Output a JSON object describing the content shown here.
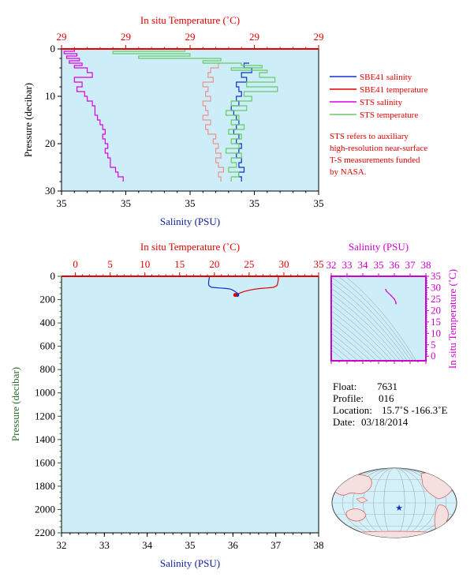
{
  "colors": {
    "plot_bg": "#cdeef8",
    "salinity": "#1030d0",
    "temperature": "#e00000",
    "sts_salinity": "#e000e0",
    "sts_temperature": "#66cc66",
    "pressure_axis": "#2a6a2a",
    "ts_axis": "#cc00cc"
  },
  "chart_data": [
    {
      "type": "line",
      "top_axis_label": "In situ Temperature (˚C)",
      "top_tick_labels": [
        "29",
        "29",
        "29",
        "29",
        "29"
      ],
      "bottom_axis_label": "Salinity (PSU)",
      "bottom_tick_labels": [
        "35",
        "35",
        "35",
        "35",
        "35"
      ],
      "ylabel": "Pressure (decibar)",
      "y_tick_labels": [
        "0",
        "10",
        "20",
        "30"
      ],
      "ylim": [
        0,
        30
      ],
      "legend_position": "right",
      "legend": [
        {
          "name": "SBE41 salinity",
          "color": "#1030d0"
        },
        {
          "name": "SBE41 temperature",
          "color": "#e00000"
        },
        {
          "name": "STS salinity",
          "color": "#e000e0"
        },
        {
          "name": "STS temperature",
          "color": "#66cc66"
        }
      ],
      "note": [
        "STS refers to auxiliary",
        "high-resolution near-surface",
        "T-S measurements funded",
        "by NASA."
      ],
      "series": [
        {
          "name": "SBE41 salinity",
          "pressure": [
            3,
            4,
            5,
            6,
            7,
            8,
            9,
            10,
            11,
            12,
            13,
            14,
            15,
            16,
            17,
            18,
            19,
            20,
            21,
            22,
            23,
            24,
            25,
            26,
            27,
            28
          ],
          "value_fraction": [
            0.73,
            0.71,
            0.74,
            0.7,
            0.72,
            0.68,
            0.69,
            0.7,
            0.68,
            0.69,
            0.66,
            0.67,
            0.68,
            0.69,
            0.68,
            0.67,
            0.69,
            0.68,
            0.7,
            0.69,
            0.68,
            0.7,
            0.69,
            0.71,
            0.69,
            0.7
          ]
        },
        {
          "name": "SBE41 temperature",
          "pressure": [
            3,
            4,
            5,
            6,
            7,
            8,
            9,
            10,
            11,
            12,
            13,
            14,
            15,
            16,
            17,
            18,
            19,
            20,
            21,
            22,
            23,
            24,
            25,
            26,
            27,
            28
          ],
          "value_fraction": [
            0.62,
            0.61,
            0.58,
            0.57,
            0.59,
            0.55,
            0.57,
            0.56,
            0.58,
            0.55,
            0.56,
            0.57,
            0.55,
            0.58,
            0.56,
            0.57,
            0.6,
            0.59,
            0.61,
            0.6,
            0.62,
            0.6,
            0.61,
            0.63,
            0.61,
            0.62
          ]
        },
        {
          "name": "STS salinity",
          "pressure": [
            0,
            0.5,
            1,
            1.5,
            2,
            2.5,
            3,
            3.5,
            4,
            5,
            6,
            7,
            8,
            9,
            10,
            11,
            12,
            13,
            14,
            15,
            16,
            17,
            18,
            19,
            20,
            21,
            22,
            23,
            24,
            25,
            26,
            27,
            28
          ],
          "value_fraction": [
            0.0,
            0.05,
            0.01,
            0.06,
            0.02,
            0.07,
            0.03,
            0.08,
            0.05,
            0.1,
            0.12,
            0.05,
            0.08,
            0.06,
            0.09,
            0.1,
            0.12,
            0.13,
            0.13,
            0.14,
            0.15,
            0.16,
            0.17,
            0.16,
            0.17,
            0.18,
            0.17,
            0.18,
            0.19,
            0.19,
            0.21,
            0.22,
            0.24
          ]
        },
        {
          "name": "STS temperature",
          "pressure": [
            0,
            0.5,
            1,
            1.5,
            2,
            2.5,
            3,
            3.5,
            4,
            4.5,
            5,
            6,
            7,
            8,
            9,
            10,
            11,
            12,
            13,
            14,
            15,
            16,
            17,
            18,
            19,
            20,
            21,
            22,
            23,
            24,
            25,
            26,
            27,
            28
          ],
          "value_fraction": [
            0.25,
            0.48,
            0.2,
            0.5,
            0.3,
            0.62,
            0.55,
            0.7,
            0.78,
            0.66,
            0.8,
            0.77,
            0.83,
            0.72,
            0.84,
            0.71,
            0.74,
            0.66,
            0.72,
            0.64,
            0.69,
            0.66,
            0.71,
            0.65,
            0.7,
            0.66,
            0.69,
            0.64,
            0.7,
            0.66,
            0.68,
            0.65,
            0.69,
            0.66
          ]
        }
      ]
    },
    {
      "type": "line",
      "top_axis_label": "In situ Temperature (˚C)",
      "top_ticks": [
        0,
        5,
        10,
        15,
        20,
        25,
        30,
        35
      ],
      "xlim_temperature": [
        -2,
        35
      ],
      "bottom_axis_label": "Salinity (PSU)",
      "bottom_ticks": [
        32,
        33,
        34,
        35,
        36,
        37,
        38
      ],
      "xlim_salinity": [
        32,
        38
      ],
      "ylabel": "Pressure (decibar)",
      "y_ticks": [
        0,
        200,
        400,
        600,
        800,
        1000,
        1200,
        1400,
        1600,
        1800,
        2000,
        2200
      ],
      "ylim": [
        0,
        2200
      ],
      "series": [
        {
          "name": "Salinity",
          "pressure": [
            0,
            10,
            30,
            60,
            80,
            95,
            100,
            105,
            110,
            120,
            130,
            145,
            150,
            155,
            160
          ],
          "values": [
            35.45,
            35.45,
            35.44,
            35.43,
            35.44,
            35.5,
            35.7,
            35.85,
            35.95,
            36.0,
            36.05,
            36.1,
            36.12,
            36.1,
            36.1
          ]
        },
        {
          "name": "Temperature",
          "pressure": [
            0,
            10,
            30,
            60,
            80,
            95,
            100,
            105,
            110,
            120,
            130,
            145,
            150,
            155,
            160
          ],
          "values": [
            29.2,
            29.2,
            29.2,
            29.1,
            29.0,
            28.5,
            27.5,
            26.5,
            25.8,
            25.0,
            24.3,
            23.6,
            23.4,
            23.2,
            23.0
          ]
        }
      ],
      "end_markers": [
        {
          "series": "Salinity",
          "pressure": 160,
          "value": 36.1
        },
        {
          "series": "Temperature",
          "pressure": 160,
          "value": 23.0
        }
      ]
    },
    {
      "type": "scatter",
      "xlabel": "Salinity (PSU)",
      "x_ticks": [
        32,
        33,
        34,
        35,
        36,
        37,
        38
      ],
      "xlim": [
        32,
        38
      ],
      "ylabel": "In situ Temperature (˚C)",
      "y_ticks": [
        0,
        5,
        10,
        15,
        20,
        25,
        30,
        35
      ],
      "ylim": [
        -2,
        35
      ],
      "grid": "density contours",
      "points": [
        {
          "x": 35.45,
          "y": 29.2
        },
        {
          "x": 35.5,
          "y": 28.5
        },
        {
          "x": 35.8,
          "y": 26.5
        },
        {
          "x": 36.0,
          "y": 25.0
        },
        {
          "x": 36.1,
          "y": 23.6
        },
        {
          "x": 36.1,
          "y": 23.0
        }
      ]
    }
  ],
  "float_info": {
    "float_label": "Float:",
    "float_value": "7631",
    "profile_label": "Profile:",
    "profile_value": "016",
    "location_label": "Location:",
    "location_value": "15.7˚S  -166.3˚E",
    "date_label": "Date:",
    "date_value": "03/18/2014"
  },
  "map": {
    "marker_lat": -15.7,
    "marker_lon": -166.3,
    "marker_color": "#1030d0"
  }
}
